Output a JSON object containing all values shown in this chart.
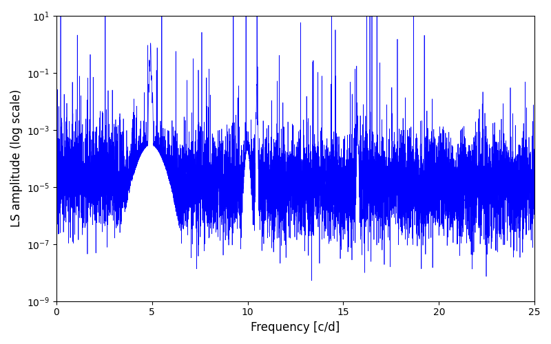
{
  "title": "",
  "xlabel": "Frequency [c/d]",
  "ylabel": "LS amplitude (log scale)",
  "xlim": [
    0,
    25
  ],
  "ylim_low": 1e-09,
  "ylim_high": 10.0,
  "line_color": "#0000FF",
  "line_width": 0.5,
  "yscale": "log",
  "figsize": [
    8.0,
    5.0
  ],
  "dpi": 100,
  "peak1_freq": 4.93,
  "peak1_amp": 1.1,
  "peak2_freq": 10.48,
  "peak2_amp": 0.04,
  "peak3_freq": 15.75,
  "peak3_amp": 0.003,
  "noise_log_mean": -5.0,
  "noise_log_std": 0.9,
  "seed": 12345,
  "n_points": 8000,
  "background_color": "#ffffff"
}
